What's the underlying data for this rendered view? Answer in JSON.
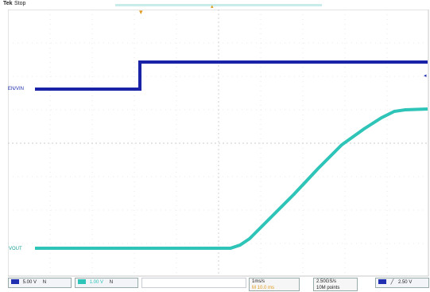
{
  "header": {
    "brand": "Tek",
    "acquisition_state": "Stop"
  },
  "channels": {
    "ch1": {
      "marker_label": "EN/VIN",
      "color": "#2030b0",
      "scale_text": "5.00 V",
      "box_extra": "N"
    },
    "ch2": {
      "marker_label": "VOUT",
      "color": "#2ec4b8",
      "scale_text": "1.00 V",
      "box_extra": "N"
    }
  },
  "timebase": {
    "per_div": "1ms/s",
    "position": "M 10.0 ms"
  },
  "acquisition": {
    "sample_rate": "2.50GS/s",
    "record_length": "10M points"
  },
  "trigger": {
    "source_color": "#2030b0",
    "slope_symbol": "╱",
    "level": "2.50 V"
  },
  "icons": {
    "trigger_position_marker": "trigger-position-icon",
    "trigger_level_marker": "trigger-level-icon"
  }
}
